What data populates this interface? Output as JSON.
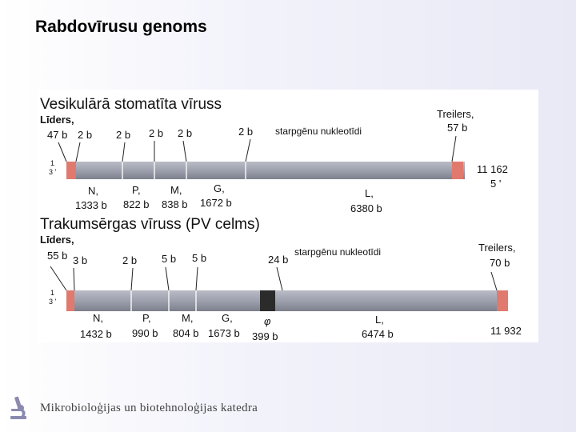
{
  "slide_title": "Rabdovīrusu genoms",
  "footer": {
    "text": "Mikrobioloģijas un biotehnoloģijas katedra"
  },
  "colors": {
    "bar_top": "#b9bcc6",
    "bar_mid": "#9da1ad",
    "bar_bot": "#7c808c",
    "leader_red": "#e07a6e",
    "psi_block": "#2b2b2b"
  },
  "virus_vsv": {
    "name": "Vesikulārā stomatīta vīruss",
    "leader_label": "Līders,",
    "leader_length": "47 b",
    "intergenic_label": "starpgēnu nukleotīdi",
    "intergenic": [
      "2 b",
      "2 b",
      "2 b",
      "2 b",
      "2 b"
    ],
    "trailer_label": "Treilers,",
    "trailer_length": "57 b",
    "end_3": "3 '",
    "end_1": "1",
    "end_total": "11 162",
    "end_5": "5 '",
    "genes": [
      {
        "name": "N,",
        "length": "1333 b"
      },
      {
        "name": "P,",
        "length": "822 b"
      },
      {
        "name": "M,",
        "length": "838 b"
      },
      {
        "name": "G,",
        "length": "1672 b"
      },
      {
        "name": "L,",
        "length": "6380 b"
      }
    ]
  },
  "virus_rabies": {
    "name": "Trakumsērgas vīruss (PV celms)",
    "leader_label": "Līders,",
    "leader_length": "55 b",
    "intergenic_label": "starpgēnu nukleotīdi",
    "intergenic": [
      "3 b",
      "2 b",
      "5 b",
      "5 b",
      "24 b"
    ],
    "trailer_label": "Treilers,",
    "trailer_length": "70 b",
    "end_3": "3 '",
    "end_1": "1",
    "end_total": "11 932",
    "genes": [
      {
        "name": "N,",
        "length": "1432 b"
      },
      {
        "name": "P,",
        "length": "990 b"
      },
      {
        "name": "M,",
        "length": "804 b"
      },
      {
        "name": "G,",
        "length": "1673 b"
      },
      {
        "name": "φ",
        "length": "399 b"
      },
      {
        "name": "L,",
        "length": "6474 b"
      }
    ]
  }
}
